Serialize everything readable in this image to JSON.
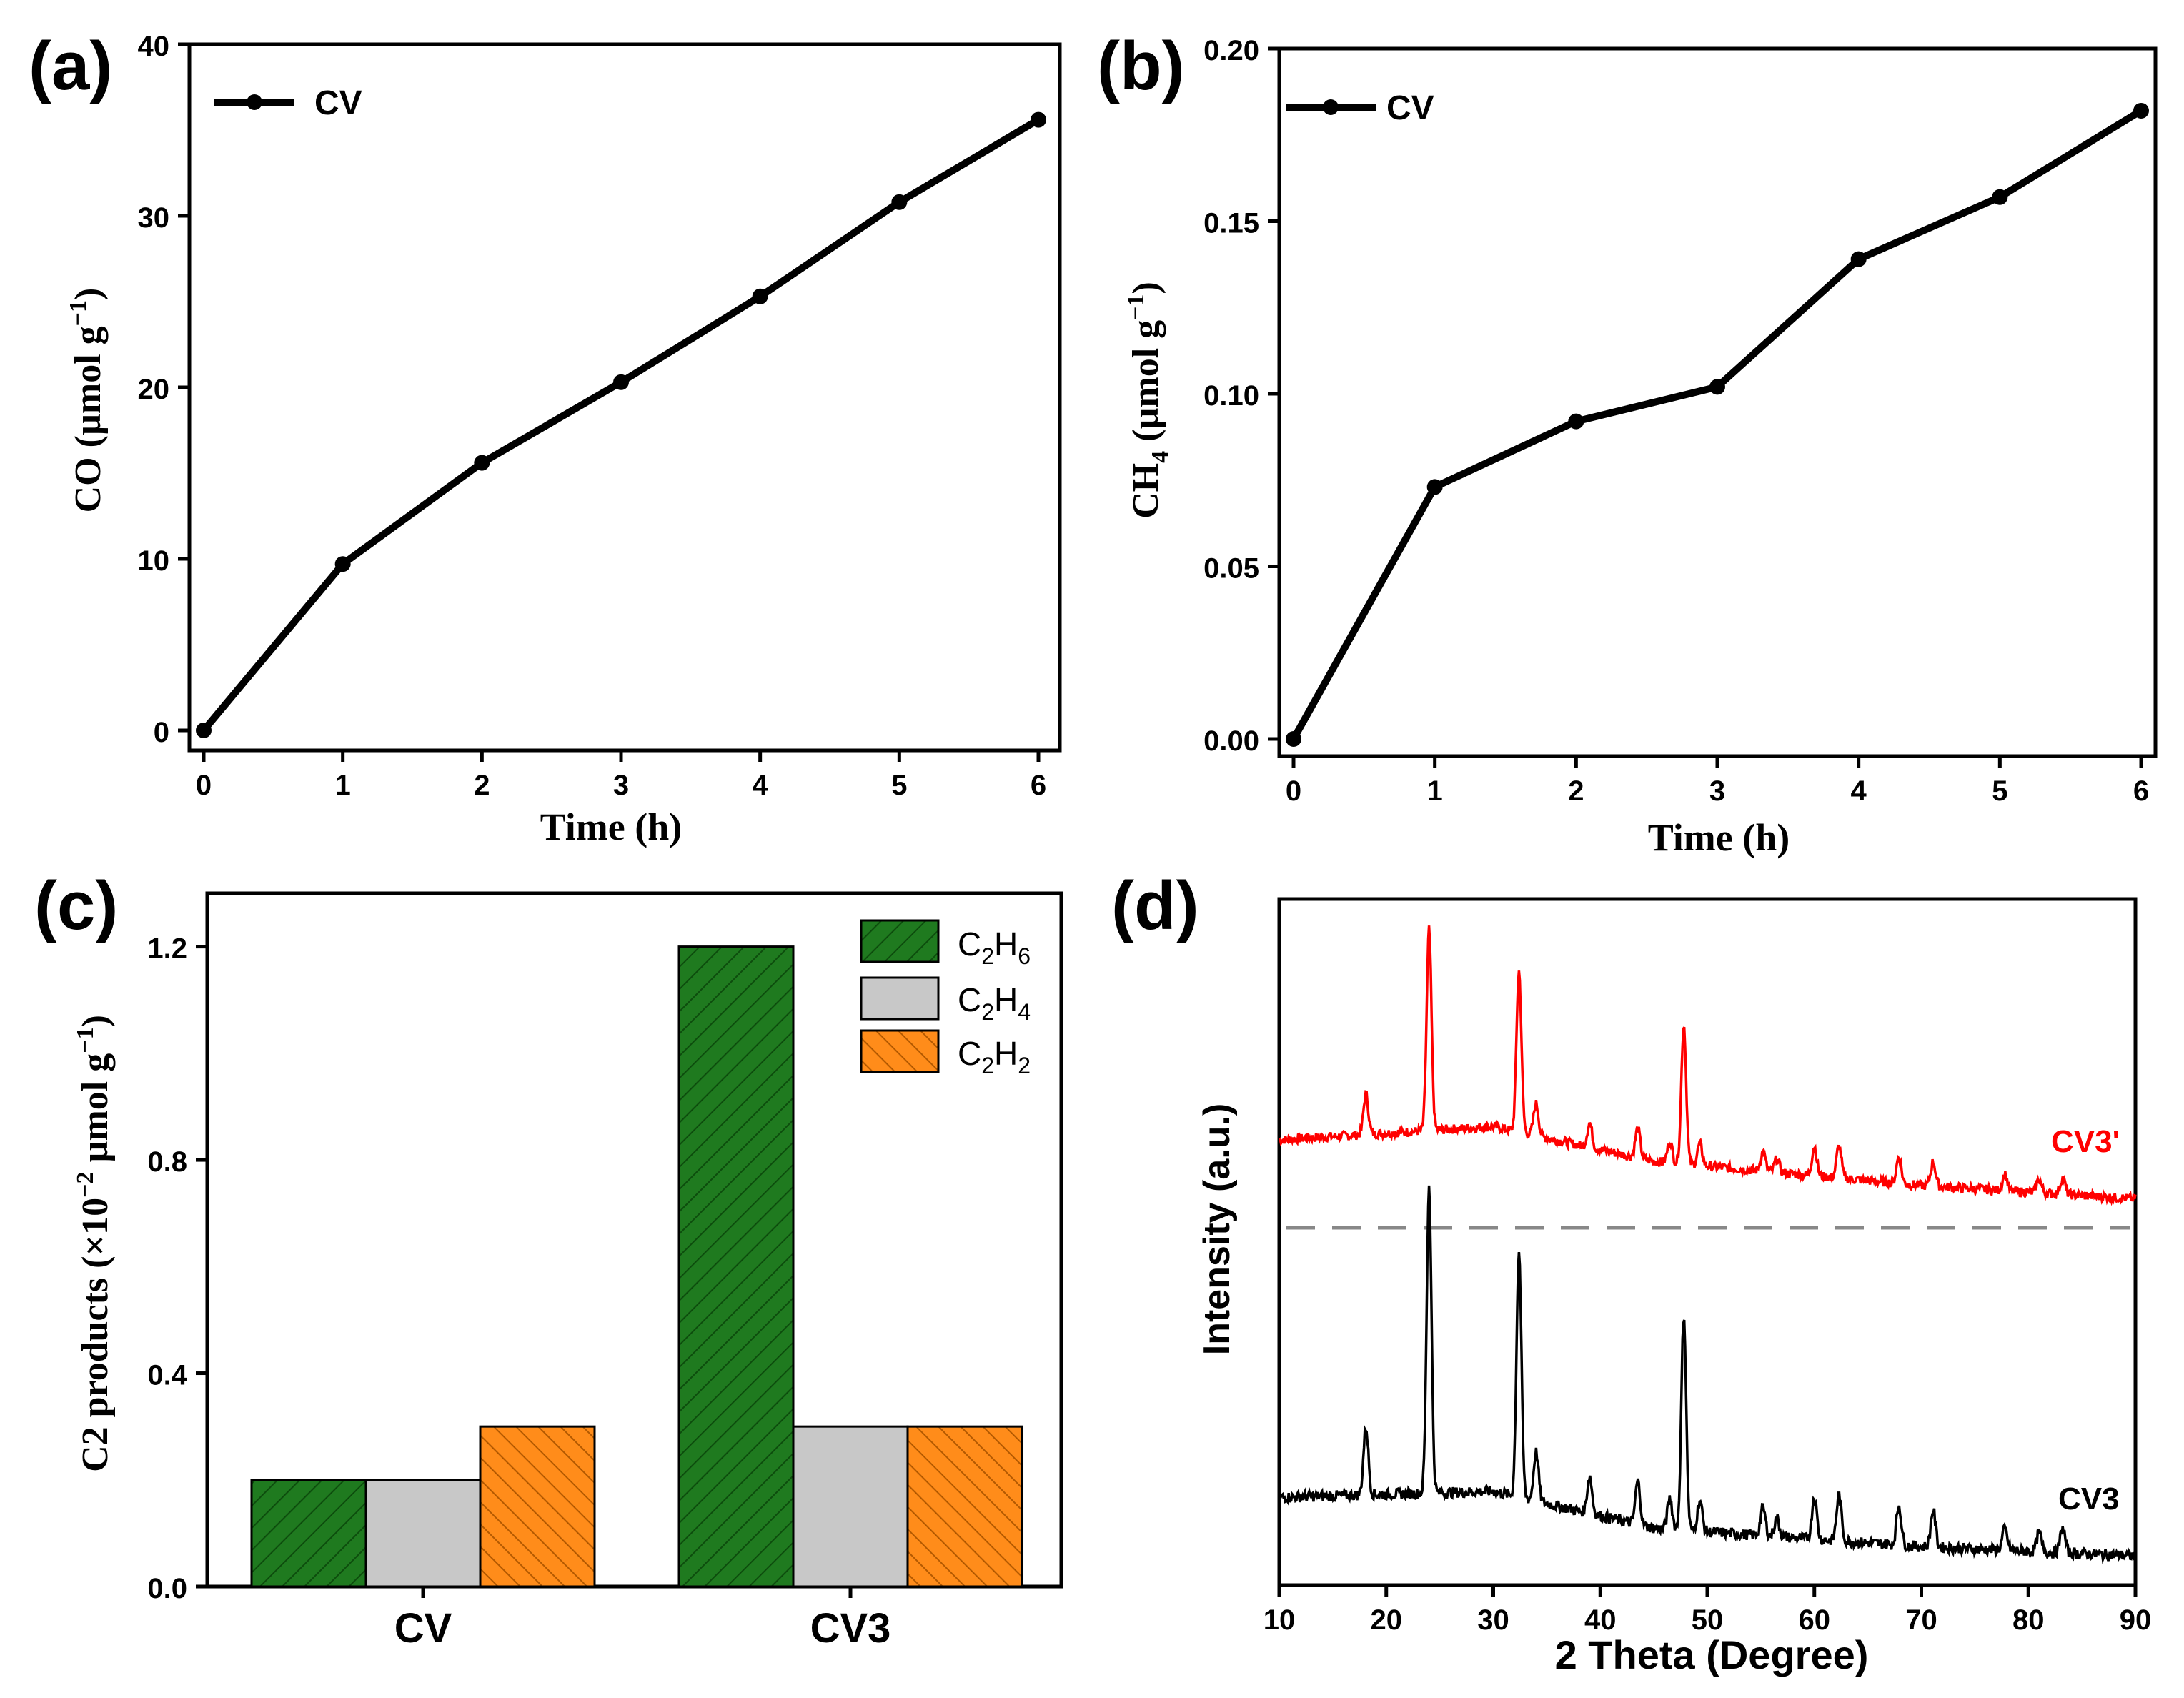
{
  "chart_data": [
    {
      "id": "a",
      "panel_label": "(a)",
      "type": "line",
      "x": [
        0,
        1,
        2,
        3,
        4,
        5,
        6
      ],
      "series": [
        {
          "name": "CV",
          "values": [
            0,
            9.7,
            15.6,
            20.3,
            25.3,
            30.8,
            35.6
          ]
        }
      ],
      "xlabel": "Time (h)",
      "ylabel_parts": {
        "a": "CO (µmol g",
        "b": "−1",
        "c": ")"
      },
      "xlim": [
        0,
        6
      ],
      "ylim": [
        0,
        40
      ],
      "xticks": [
        "0",
        "1",
        "2",
        "3",
        "4",
        "5",
        "6"
      ],
      "yticks": [
        "0",
        "10",
        "20",
        "30",
        "40"
      ],
      "legend": "top-left",
      "color": "#000000"
    },
    {
      "id": "b",
      "panel_label": "(b)",
      "type": "line",
      "x": [
        0,
        1,
        2,
        3,
        4,
        5,
        6
      ],
      "series": [
        {
          "name": "CV",
          "values": [
            0,
            0.073,
            0.092,
            0.102,
            0.139,
            0.157,
            0.182
          ]
        }
      ],
      "xlabel": "Time (h)",
      "ylabel_parts": {
        "a": "CH",
        "sub": "4",
        "b": " (µmol g",
        "sup": "−1",
        "c": ")"
      },
      "xlim": [
        0,
        6
      ],
      "ylim": [
        0,
        0.2
      ],
      "xticks": [
        "0",
        "1",
        "2",
        "3",
        "4",
        "5",
        "6"
      ],
      "yticks": [
        "0.00",
        "0.05",
        "0.10",
        "0.15",
        "0.20"
      ],
      "legend": "top-left",
      "color": "#000000"
    },
    {
      "id": "c",
      "panel_label": "(c)",
      "type": "bar",
      "categories": [
        "CV",
        "CV3"
      ],
      "series": [
        {
          "name": "C2H6",
          "label_a": "C",
          "sub1": "2",
          "label_b": "H",
          "sub2": "6",
          "values": [
            0.2,
            1.2
          ],
          "color": "#1f7a1f",
          "hatch": "forward"
        },
        {
          "name": "C2H4",
          "label_a": "C",
          "sub1": "2",
          "label_b": "H",
          "sub2": "4",
          "values": [
            0.2,
            0.3
          ],
          "color": "#c8c8c8",
          "hatch": "none"
        },
        {
          "name": "C2H2",
          "label_a": "C",
          "sub1": "2",
          "label_b": "H",
          "sub2": "2",
          "values": [
            0.3,
            0.3
          ],
          "color": "#ff8c1a",
          "hatch": "back"
        }
      ],
      "xlabel": "",
      "ylabel_parts": {
        "a": "C2 products (×10",
        "sup1": "−2",
        "b": " µmol g",
        "sup2": "−1",
        "c": ")"
      },
      "ylim": [
        0,
        1.3
      ],
      "yticks": [
        "0.0",
        "0.4",
        "0.8",
        "1.2"
      ],
      "legend": "top-right"
    },
    {
      "id": "d",
      "panel_label": "(d)",
      "type": "line",
      "xlabel": "2 Theta (Degree)",
      "ylabel": "Intensity (a.u.)",
      "xlim": [
        10,
        90
      ],
      "xticks": [
        "10",
        "20",
        "30",
        "40",
        "50",
        "60",
        "70",
        "80",
        "90"
      ],
      "series": [
        {
          "name": "CV3'",
          "color": "#ff0000",
          "baseline": [
            [
              10,
              0.28
            ],
            [
              30,
              0.33
            ],
            [
              45,
              0.2
            ],
            [
              70,
              0.11
            ],
            [
              90,
              0.06
            ]
          ],
          "peaks": [
            [
              18.1,
              0.15
            ],
            [
              24.0,
              0.75
            ],
            [
              32.4,
              0.6
            ],
            [
              34.0,
              0.12
            ],
            [
              39.0,
              0.09
            ],
            [
              43.5,
              0.11
            ],
            [
              46.5,
              0.08
            ],
            [
              47.8,
              0.52
            ],
            [
              49.3,
              0.08
            ],
            [
              55.2,
              0.07
            ],
            [
              56.5,
              0.05
            ],
            [
              60.0,
              0.11
            ],
            [
              62.3,
              0.12
            ],
            [
              67.9,
              0.1
            ],
            [
              71.1,
              0.09
            ],
            [
              77.8,
              0.06
            ],
            [
              81.0,
              0.05
            ],
            [
              83.2,
              0.06
            ]
          ]
        },
        {
          "name": "CV3",
          "color": "#000000",
          "baseline": [
            [
              10,
              0.22
            ],
            [
              30,
              0.24
            ],
            [
              45,
              0.12
            ],
            [
              70,
              0.06
            ],
            [
              90,
              0.03
            ]
          ],
          "peaks": [
            [
              18.1,
              0.22
            ],
            [
              24.0,
              1.0
            ],
            [
              32.4,
              0.8
            ],
            [
              34.0,
              0.16
            ],
            [
              39.0,
              0.12
            ],
            [
              43.5,
              0.14
            ],
            [
              46.5,
              0.1
            ],
            [
              47.8,
              0.7
            ],
            [
              49.3,
              0.1
            ],
            [
              55.2,
              0.09
            ],
            [
              56.5,
              0.06
            ],
            [
              60.0,
              0.14
            ],
            [
              62.3,
              0.15
            ],
            [
              67.9,
              0.13
            ],
            [
              71.1,
              0.12
            ],
            [
              77.8,
              0.07
            ],
            [
              81.0,
              0.06
            ],
            [
              83.2,
              0.08
            ]
          ]
        }
      ],
      "separator": "dashed"
    }
  ]
}
